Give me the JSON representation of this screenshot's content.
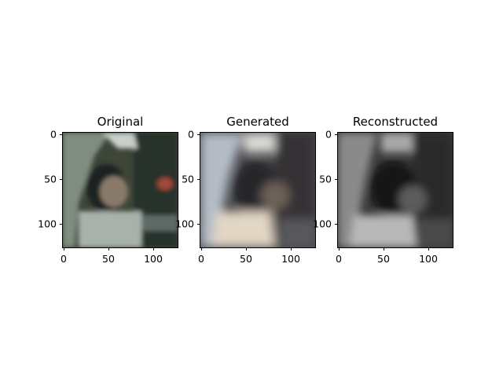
{
  "panels": [
    {
      "title": "Original",
      "y_ticks": [
        "0",
        "50",
        "100"
      ],
      "x_ticks": [
        "0",
        "50",
        "100"
      ]
    },
    {
      "title": "Generated",
      "y_ticks": [
        "0",
        "50",
        "100"
      ],
      "x_ticks": [
        "0",
        "50",
        "100"
      ]
    },
    {
      "title": "Reconstructed",
      "y_ticks": [
        "0",
        "50",
        "100"
      ],
      "x_ticks": [
        "0",
        "50",
        "100"
      ]
    }
  ]
}
